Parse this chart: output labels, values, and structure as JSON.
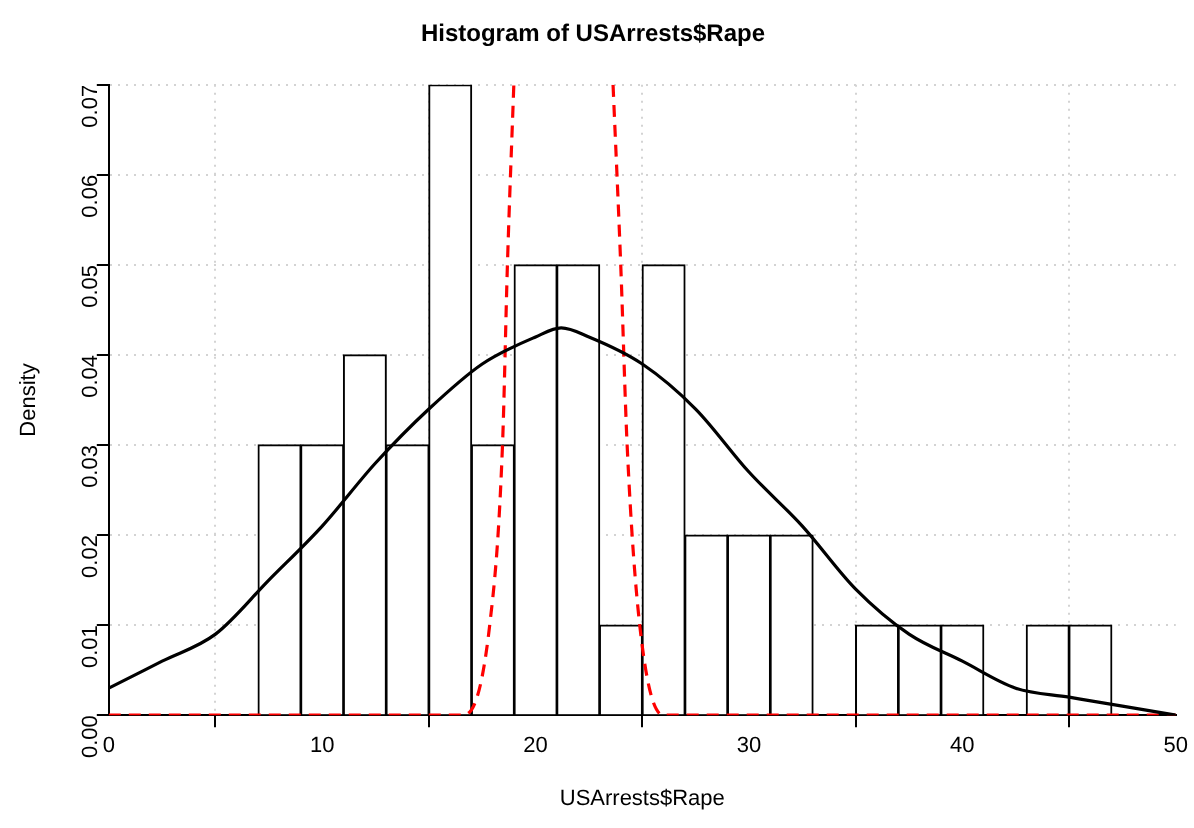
{
  "chart_data": {
    "type": "histogram",
    "title": "Histogram of USArrests$Rape",
    "xlabel": "USArrests$Rape",
    "ylabel": "Density",
    "bins": [
      7,
      9,
      11,
      13,
      15,
      17,
      19,
      21,
      23,
      25,
      27,
      29,
      31,
      33,
      35,
      37,
      39,
      41,
      43,
      45,
      47
    ],
    "values": [
      0.03,
      0.03,
      0.04,
      0.03,
      0.07,
      0.03,
      0.05,
      0.05,
      0.01,
      0.05,
      0.02,
      0.02,
      0.02,
      0,
      0.01,
      0.01,
      0.01,
      0,
      0.01,
      0.01
    ],
    "color": "#ffffff",
    "series": [
      {
        "type": "line",
        "color": "#000000",
        "line_style": "solid",
        "x": [
          0,
          2.5,
          5,
          7.5,
          10,
          12.5,
          15,
          17.5,
          20,
          21.2,
          22.5,
          25,
          27.5,
          30,
          32.5,
          35,
          37.5,
          40,
          42.5,
          45,
          47.5,
          50
        ],
        "values": [
          0.003,
          0.006,
          0.009,
          0.015,
          0.021,
          0.028,
          0.034,
          0.039,
          0.042,
          0.043,
          0.042,
          0.039,
          0.034,
          0.027,
          0.021,
          0.014,
          0.009,
          0.006,
          0.003,
          0.002,
          0.001,
          0
        ]
      },
      {
        "type": "line",
        "color": "#ff0000",
        "line_style": "dashed",
        "x": [
          0,
          16.6,
          17.85,
          18.45,
          18.68,
          18.98,
          21.2,
          23.63,
          23.99,
          24.29,
          24.88,
          26,
          50
        ],
        "values": [
          0,
          0,
          0.01,
          0.03,
          0.05,
          0.07,
          null,
          0.07,
          0.05,
          0.03,
          0.01,
          0,
          0
        ]
      }
    ],
    "xlim": [
      0,
      50
    ],
    "xticks": [
      0,
      10,
      20,
      30,
      40,
      50
    ],
    "ylim": [
      0,
      0.07
    ],
    "yticks": [
      {
        "value": 0,
        "label": "0.00"
      },
      {
        "value": 0.01,
        "label": "0.01"
      },
      {
        "value": 0.02,
        "label": "0.02"
      },
      {
        "value": 0.03,
        "label": "0.03"
      },
      {
        "value": 0.04,
        "label": "0.04"
      },
      {
        "value": 0.05,
        "label": "0.05"
      },
      {
        "value": 0.06,
        "label": "0.06"
      },
      {
        "value": 0.07,
        "label": "0.07"
      }
    ],
    "grid": true,
    "legend": false
  }
}
